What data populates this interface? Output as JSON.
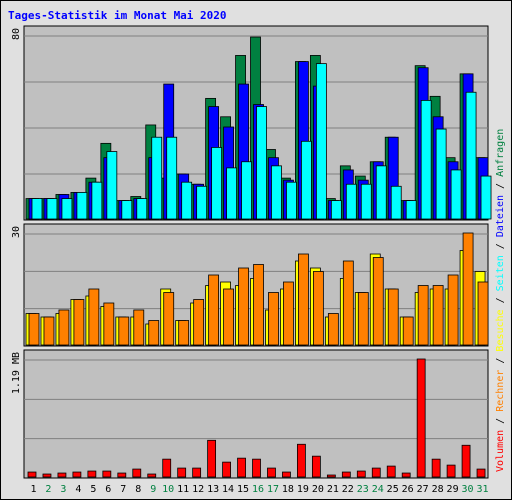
{
  "chart_data": {
    "type": "bar",
    "title": "Tages-Statistik im Monat Mai 2020",
    "categories": [
      "1",
      "2",
      "3",
      "4",
      "5",
      "6",
      "7",
      "8",
      "9",
      "10",
      "11",
      "12",
      "13",
      "14",
      "15",
      "16",
      "17",
      "18",
      "19",
      "20",
      "21",
      "22",
      "23",
      "24",
      "25",
      "26",
      "27",
      "28",
      "29",
      "30",
      "31"
    ],
    "weekend_days": [
      "2",
      "3",
      "9",
      "10",
      "16",
      "17",
      "23",
      "24",
      "30",
      "31"
    ],
    "colors": {
      "anfragen": "#008040",
      "dateien": "#0000ff",
      "seiten": "#00ffff",
      "besuche": "#ffff00",
      "rechner": "#ff8000",
      "volumen": "#ff0000",
      "plot_bg": "#c0c0c0",
      "frame_bg": "#e0e0e0",
      "weekday_text": "#000000",
      "weekend_text": "#008040"
    },
    "panels": [
      {
        "id": "top",
        "axis_max_label": "80",
        "ymax": 90,
        "series": [
          {
            "name": "Anfragen",
            "values": [
              10,
              10,
              12,
              13,
              20,
              37,
              9,
              11,
              46,
              20,
              22,
              17,
              59,
              50,
              80,
              89,
              34,
              20,
              77,
              80,
              10,
              26,
              21,
              28,
              40,
              9,
              75,
              60,
              30,
              71,
              30
            ]
          },
          {
            "name": "Dateien",
            "values": [
              10,
              10,
              12,
              13,
              18,
              30,
              9,
              10,
              30,
              66,
              22,
              17,
              55,
              45,
              66,
              56,
              30,
              19,
              77,
              65,
              9,
              24,
              19,
              28,
              40,
              9,
              74,
              50,
              28,
              71,
              30
            ]
          },
          {
            "name": "Seiten",
            "values": [
              10,
              10,
              10,
              13,
              18,
              33,
              9,
              10,
              40,
              40,
              18,
              16,
              35,
              25,
              28,
              55,
              26,
              18,
              38,
              76,
              9,
              17,
              17,
              26,
              16,
              9,
              58,
              44,
              24,
              62,
              21
            ]
          }
        ]
      },
      {
        "id": "mid",
        "axis_max_label": "30",
        "ymax": 32,
        "series": [
          {
            "name": "Besuche",
            "values": [
              9,
              8,
              9,
              13,
              14,
              11,
              8,
              8,
              6,
              16,
              7,
              12,
              17,
              18,
              17,
              19,
              10,
              16,
              24,
              22,
              8,
              19,
              15,
              26,
              16,
              8,
              15,
              16,
              16,
              27,
              21
            ]
          },
          {
            "name": "Rechner",
            "values": [
              9,
              8,
              10,
              13,
              16,
              12,
              8,
              10,
              7,
              15,
              7,
              13,
              20,
              16,
              22,
              23,
              15,
              18,
              26,
              21,
              9,
              24,
              15,
              25,
              16,
              8,
              17,
              17,
              20,
              32,
              18
            ]
          }
        ]
      },
      {
        "id": "bot",
        "axis_max_label": "1.19 MB",
        "ymax": 1.19,
        "series": [
          {
            "name": "Volumen",
            "values": [
              0.05,
              0.03,
              0.04,
              0.05,
              0.06,
              0.06,
              0.04,
              0.08,
              0.03,
              0.18,
              0.09,
              0.09,
              0.37,
              0.15,
              0.19,
              0.18,
              0.09,
              0.05,
              0.33,
              0.21,
              0.02,
              0.05,
              0.06,
              0.09,
              0.11,
              0.04,
              1.19,
              0.18,
              0.12,
              0.32,
              0.08
            ]
          }
        ]
      }
    ],
    "legend": {
      "placement": "right",
      "top": [
        {
          "text": "Anfragen",
          "color": "#008040"
        },
        {
          "text": "/",
          "color": "#000000"
        },
        {
          "text": "Dateien",
          "color": "#0000ff"
        },
        {
          "text": "/",
          "color": "#000000"
        },
        {
          "text": "Seiten",
          "color": "#00ffff"
        },
        {
          "text": "/",
          "color": "#000000"
        },
        {
          "text": "Besuche",
          "color": "#ffff00"
        },
        {
          "text": "/",
          "color": "#000000"
        },
        {
          "text": "Rechner",
          "color": "#ff8000"
        },
        {
          "text": "/",
          "color": "#000000"
        },
        {
          "text": "Volumen",
          "color": "#ff0000"
        }
      ]
    },
    "grid": true
  }
}
